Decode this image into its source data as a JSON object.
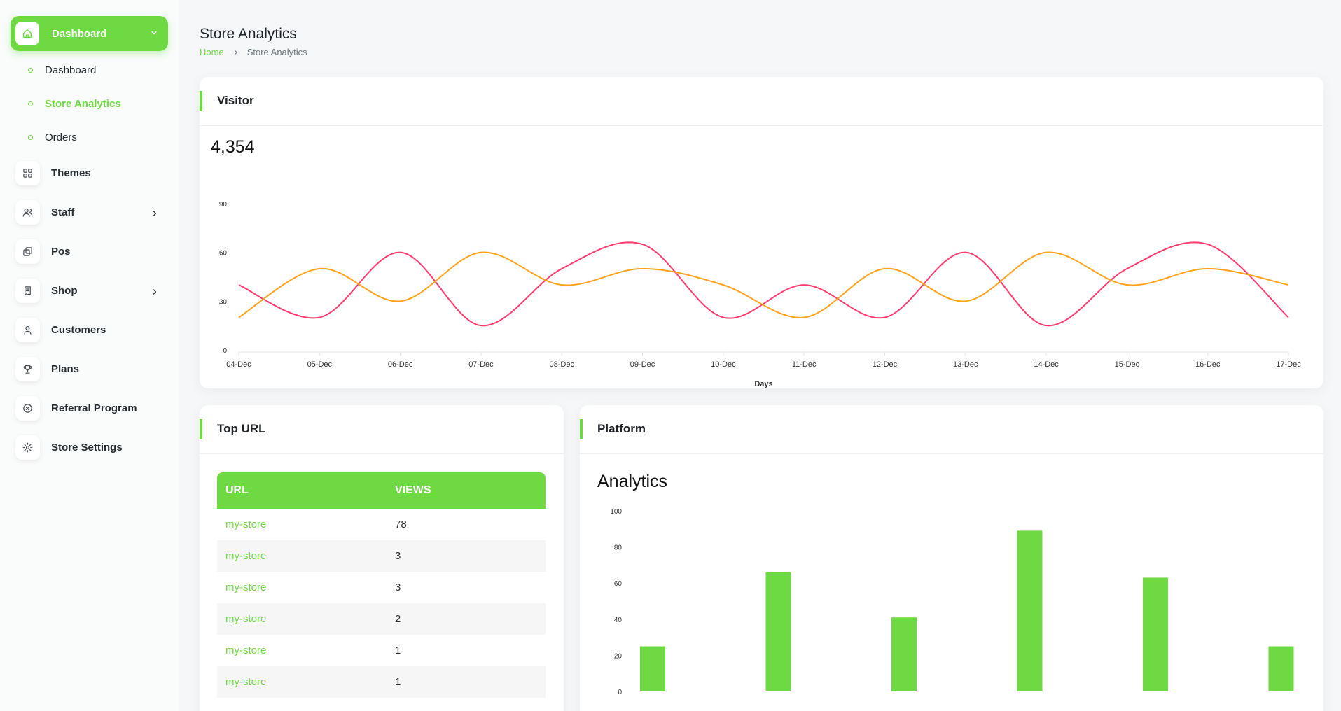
{
  "sidebar": {
    "main": {
      "label": "Dashboard",
      "icon": "home-icon"
    },
    "sub_items": [
      {
        "label": "Dashboard",
        "active": false
      },
      {
        "label": "Store Analytics",
        "active": true
      },
      {
        "label": "Orders",
        "active": false
      }
    ],
    "items": [
      {
        "label": "Themes",
        "icon": "grid-icon",
        "has_chevron": false
      },
      {
        "label": "Staff",
        "icon": "users-icon",
        "has_chevron": true
      },
      {
        "label": "Pos",
        "icon": "layers-icon",
        "has_chevron": false
      },
      {
        "label": "Shop",
        "icon": "receipt-icon",
        "has_chevron": true
      },
      {
        "label": "Customers",
        "icon": "user-icon",
        "has_chevron": false
      },
      {
        "label": "Plans",
        "icon": "trophy-icon",
        "has_chevron": false
      },
      {
        "label": "Referral Program",
        "icon": "discount-icon",
        "has_chevron": false
      },
      {
        "label": "Store Settings",
        "icon": "gear-icon",
        "has_chevron": false
      }
    ]
  },
  "header": {
    "title": "Store Analytics",
    "breadcrumb": [
      "Home",
      "Store Analytics"
    ]
  },
  "visitor": {
    "title": "Visitor",
    "total": "4,354"
  },
  "top_url": {
    "title": "Top URL",
    "columns": [
      "URL",
      "VIEWS"
    ],
    "rows": [
      {
        "url": "my-store",
        "views": "78"
      },
      {
        "url": "my-store",
        "views": "3"
      },
      {
        "url": "my-store",
        "views": "3"
      },
      {
        "url": "my-store",
        "views": "2"
      },
      {
        "url": "my-store",
        "views": "1"
      },
      {
        "url": "my-store",
        "views": "1"
      }
    ]
  },
  "platform": {
    "title": "Platform",
    "subtitle": "Analytics"
  },
  "colors": {
    "accent": "#6fd943",
    "series_pink": "#ff3a6e",
    "series_orange": "#ffa21d"
  },
  "chart_data": [
    {
      "type": "line",
      "xlabel": "Days",
      "ylabel": "",
      "ylim": [
        0,
        90
      ],
      "yticks": [
        0,
        30,
        60,
        90
      ],
      "x": [
        "04-Dec",
        "05-Dec",
        "06-Dec",
        "07-Dec",
        "08-Dec",
        "09-Dec",
        "10-Dec",
        "11-Dec",
        "12-Dec",
        "13-Dec",
        "14-Dec",
        "15-Dec",
        "16-Dec",
        "17-Dec"
      ],
      "series": [
        {
          "color": "#ff3a6e",
          "values": [
            40,
            20,
            60,
            15,
            50,
            65,
            20,
            40,
            20,
            60,
            15,
            50,
            65,
            20
          ]
        },
        {
          "color": "#ffa21d",
          "values": [
            20,
            50,
            30,
            60,
            40,
            50,
            40,
            20,
            50,
            30,
            60,
            40,
            50,
            40
          ]
        }
      ],
      "grid": false,
      "legend": "none"
    },
    {
      "type": "bar",
      "ylim": [
        0,
        100
      ],
      "yticks": [
        0,
        20,
        40,
        60,
        80,
        100
      ],
      "categories": [
        "",
        "",
        "",
        "",
        "",
        ""
      ],
      "values": [
        25,
        66,
        41,
        89,
        63,
        25
      ],
      "color": "#6fd943"
    }
  ]
}
